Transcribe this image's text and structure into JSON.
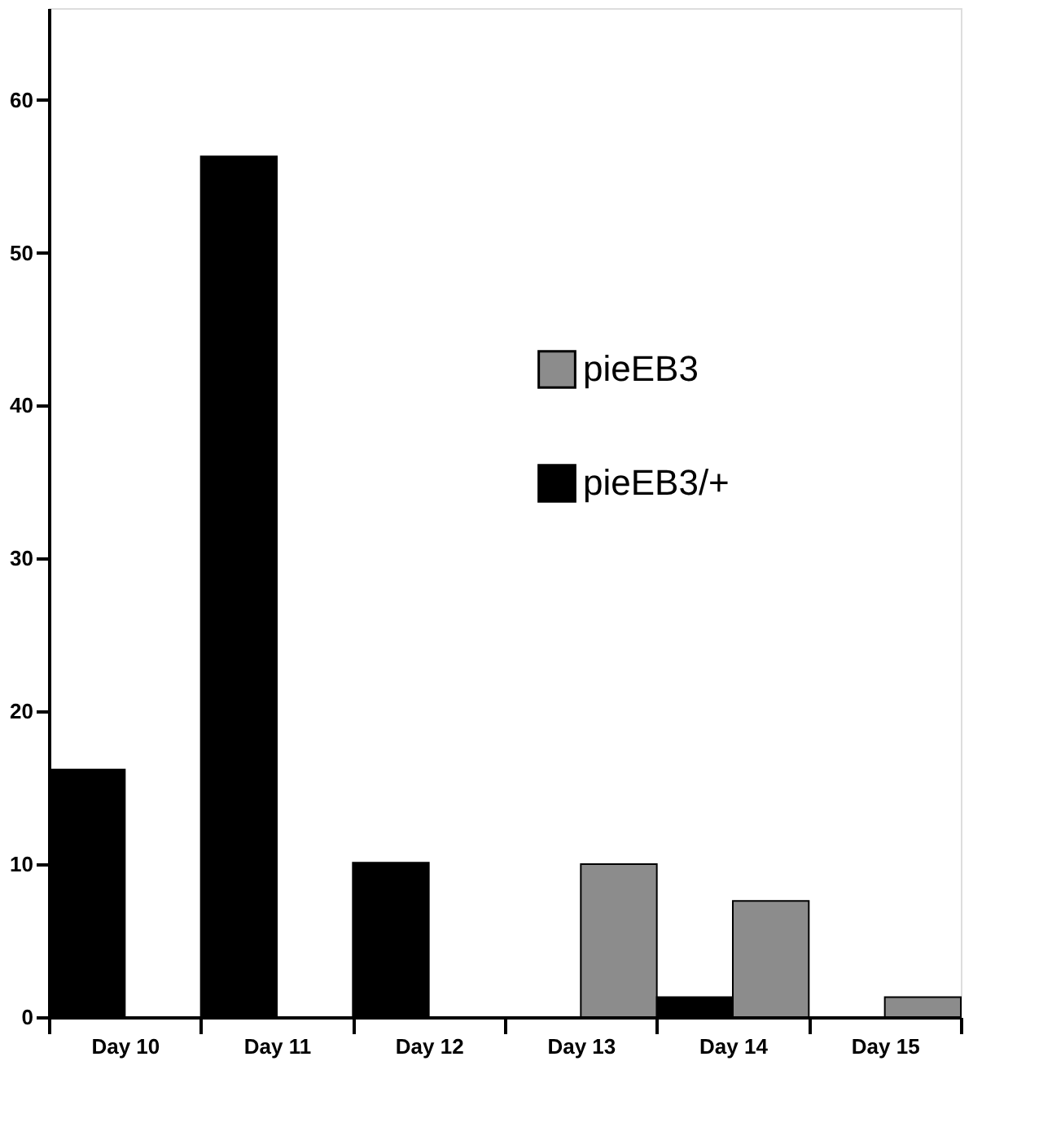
{
  "chart_data": {
    "type": "bar",
    "categories": [
      "Day 10",
      "Day 11",
      "Day 12",
      "Day 13",
      "Day 14",
      "Day 15"
    ],
    "series": [
      {
        "name": "pieEB3",
        "color": "#8c8c8c",
        "values": [
          null,
          null,
          null,
          10,
          7.6,
          1.3
        ]
      },
      {
        "name": "pieEB3/+",
        "color": "#000000",
        "values": [
          16.2,
          56.3,
          10.1,
          null,
          1.3,
          null
        ]
      }
    ],
    "ylim": [
      0,
      66
    ],
    "yticks": [
      0,
      10,
      20,
      30,
      40,
      50,
      60
    ],
    "grid": false,
    "legend": "top right"
  }
}
